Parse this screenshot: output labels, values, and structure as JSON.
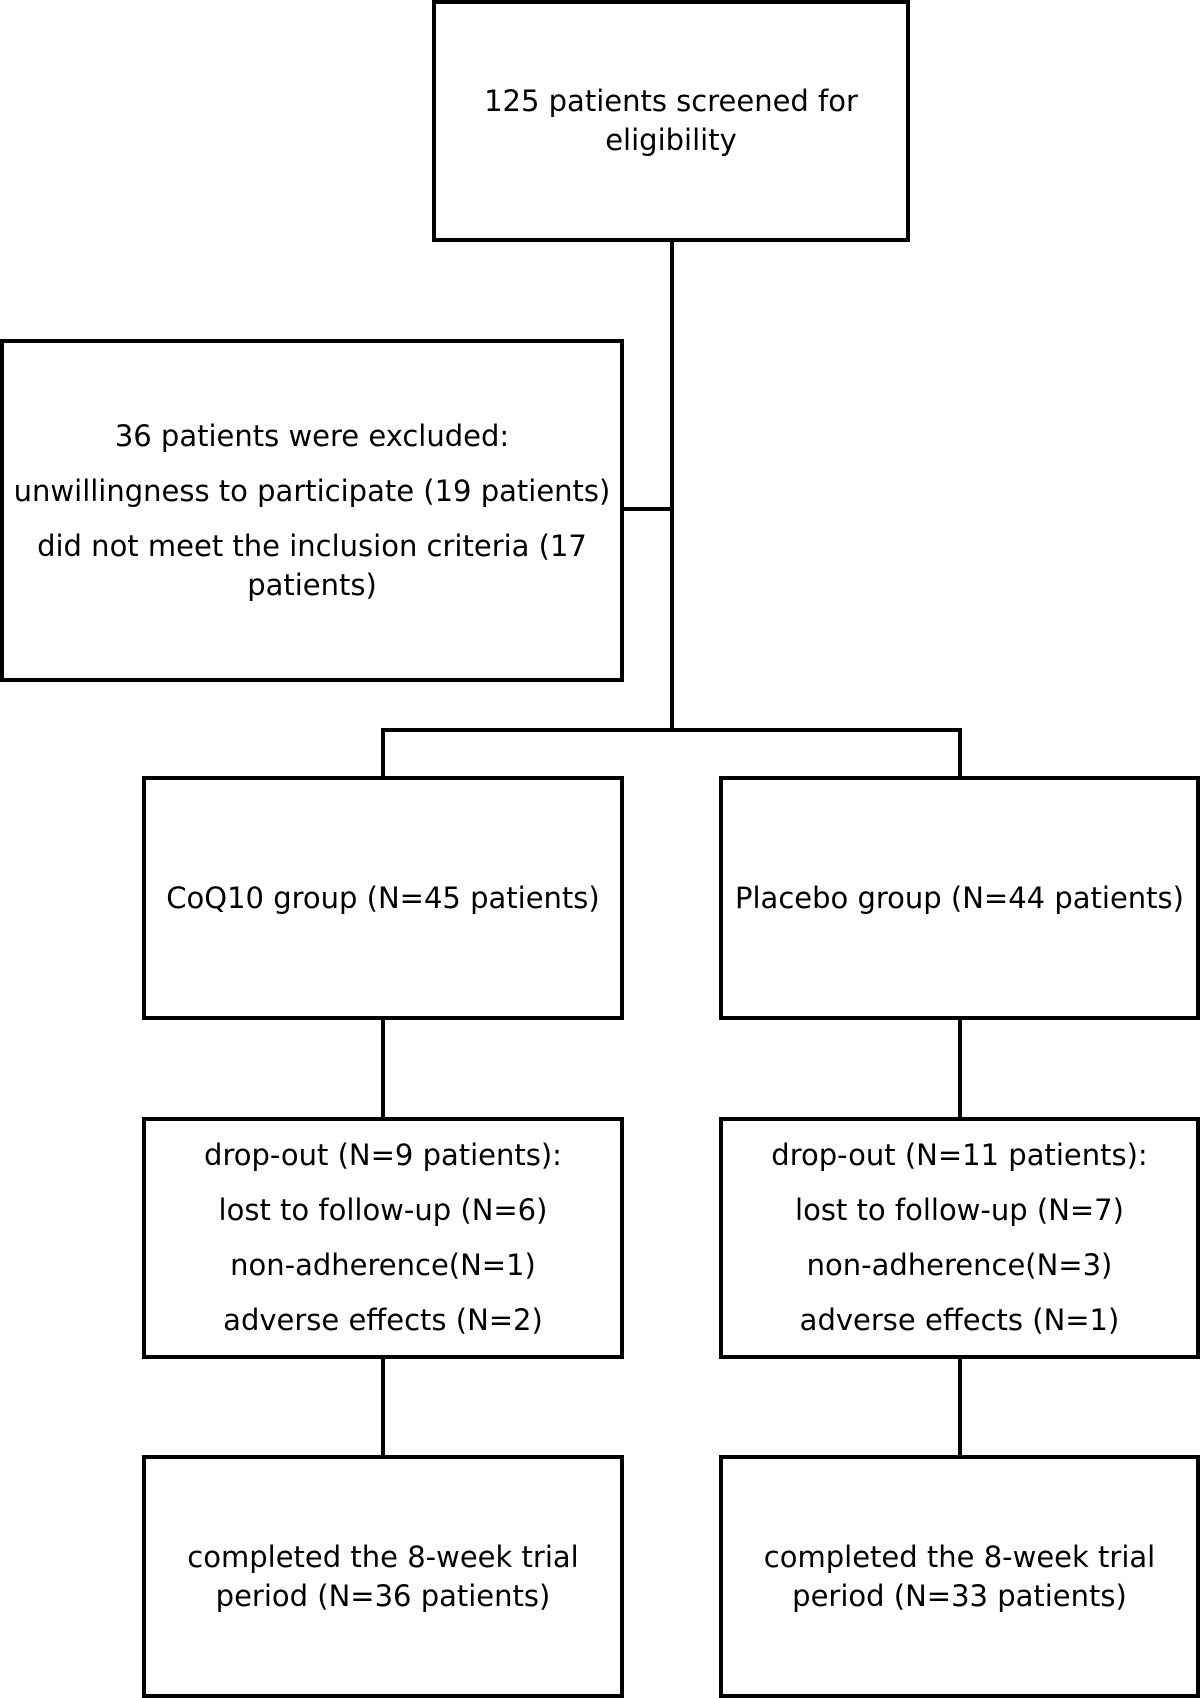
{
  "flowchart": {
    "screening": {
      "lines": [
        "125 patients screened for",
        "eligibility"
      ]
    },
    "excluded": {
      "heading": "36 patients were excluded:",
      "reasons": [
        "unwillingness to participate (19 patients)",
        "did not meet the inclusion criteria (17",
        "patients)"
      ]
    },
    "groups": [
      {
        "allocation": "CoQ10 group (N=45 patients)",
        "dropout": {
          "heading": "drop-out (N=9 patients):",
          "items": [
            "lost to follow-up (N=6)",
            "non-adherence(N=1)",
            "adverse effects (N=2)"
          ]
        },
        "completed": [
          "completed the 8-week trial",
          "period (N=36 patients)"
        ]
      },
      {
        "allocation": "Placebo group (N=44 patients)",
        "dropout": {
          "heading": "drop-out (N=11 patients):",
          "items": [
            "lost to follow-up (N=7)",
            "non-adherence(N=3)",
            "adverse effects (N=1)"
          ]
        },
        "completed": [
          "completed the 8-week trial",
          "period (N=33 patients)"
        ]
      }
    ]
  }
}
